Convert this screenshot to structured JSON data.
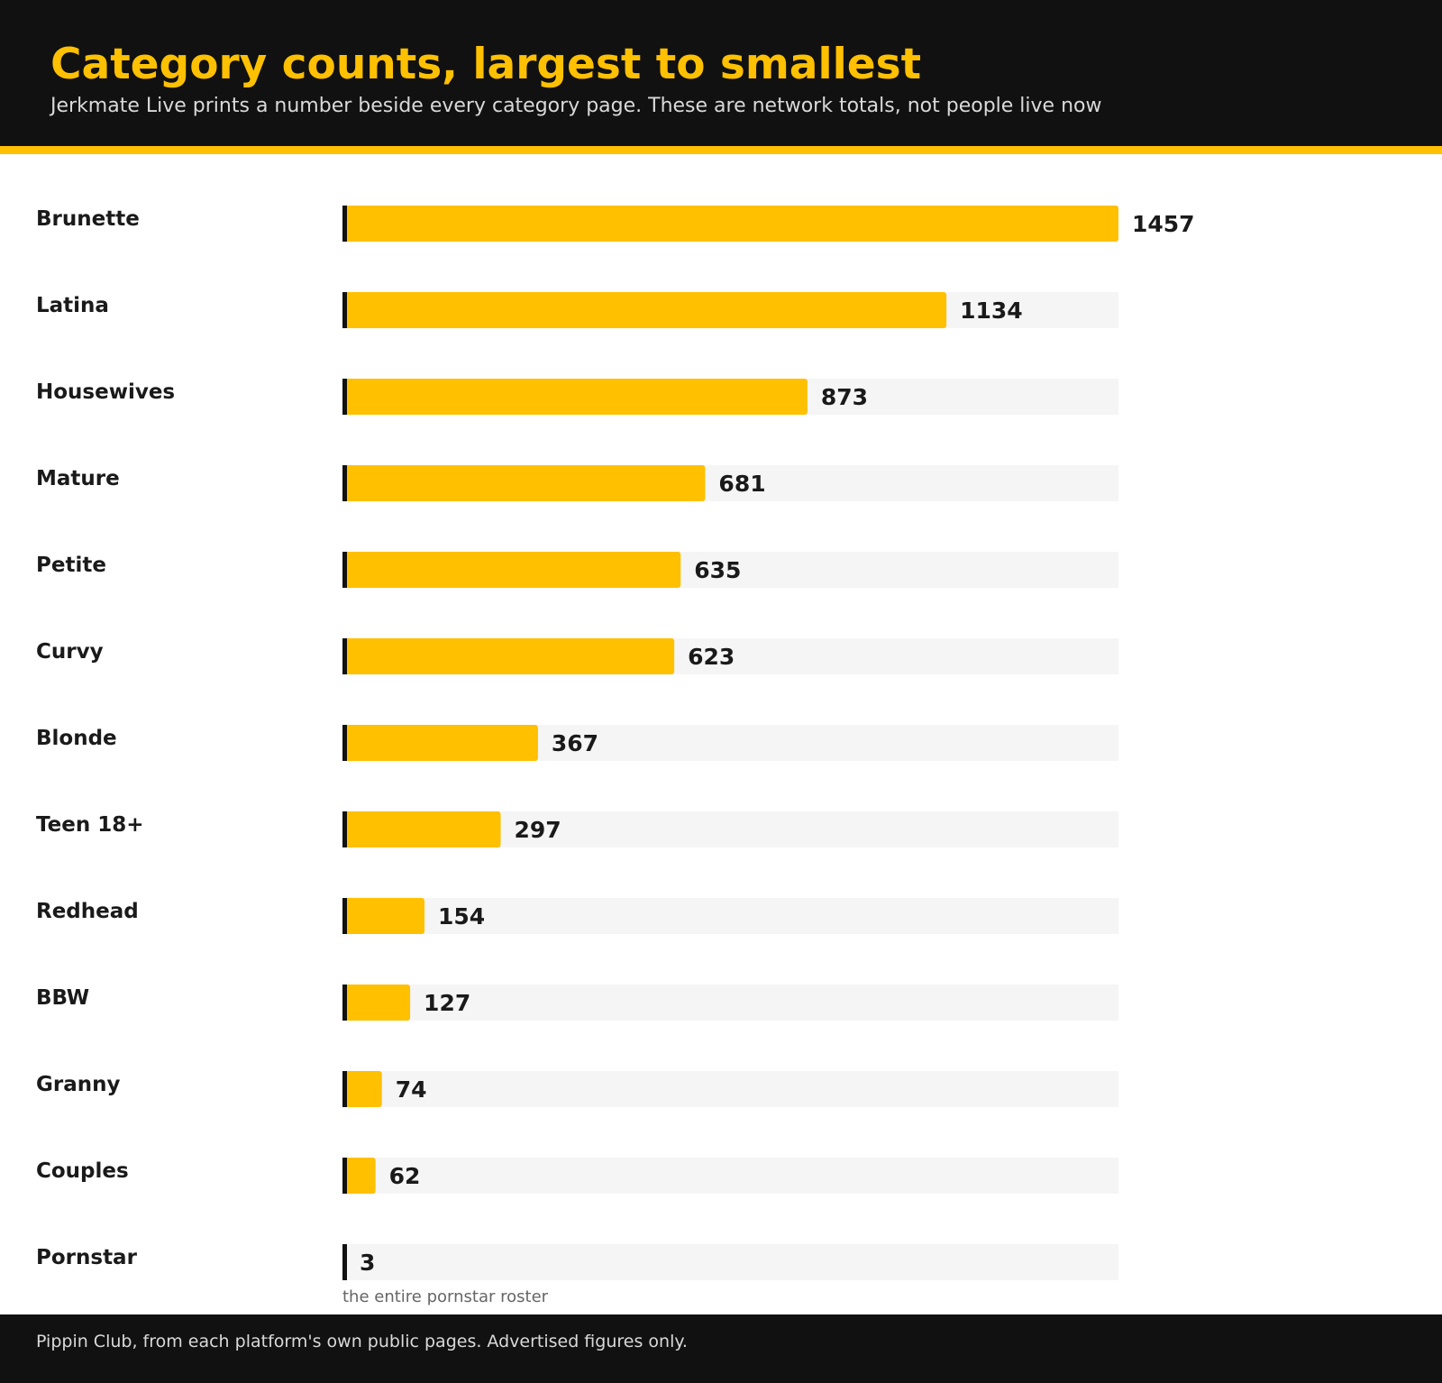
{
  "header": {
    "title": "Category counts, largest to smallest",
    "subtitle": "Jerkmate Live prints a number beside every category page. These are network totals, not people live now"
  },
  "footer": {
    "source": "Pippin Club, from each platform's own public pages. Advertised figures only."
  },
  "colors": {
    "bar": "#FFC000",
    "track": "#f5f5f5",
    "axis_tick": "#111111",
    "header_bg": "#111111",
    "accent": "#FFC000"
  },
  "chart_data": {
    "type": "bar",
    "orientation": "horizontal",
    "title": "Category counts, largest to smallest",
    "subtitle": "Jerkmate Live prints a number beside every category page. These are network totals, not people live now",
    "categories": [
      "Brunette",
      "Latina",
      "Housewives",
      "Mature",
      "Petite",
      "Curvy",
      "Blonde",
      "Teen 18+",
      "Redhead",
      "BBW",
      "Granny",
      "Couples",
      "Pornstar"
    ],
    "values": [
      1457,
      1134,
      873,
      681,
      635,
      623,
      367,
      297,
      154,
      127,
      74,
      62,
      3
    ],
    "xlim": [
      0,
      1457
    ],
    "grid": false,
    "legend": "none",
    "annotations": [
      {
        "category": "Pornstar",
        "text": "the entire pornstar roster"
      }
    ]
  }
}
